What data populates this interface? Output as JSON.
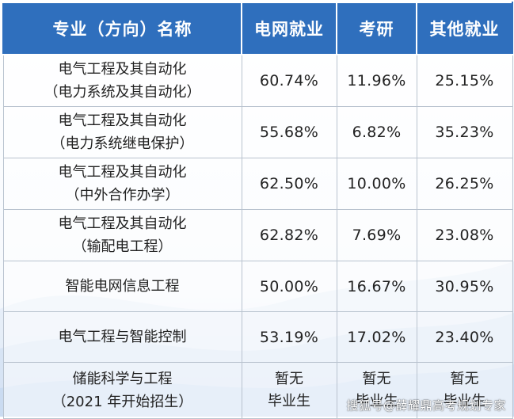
{
  "header": {
    "col_name": "专业（方向）名称",
    "col_grid": "电网就业",
    "col_grad": "考研",
    "col_other": "其他就业"
  },
  "rows": [
    {
      "name_line1": "电气工程及其自动化",
      "name_line2": "（电力系统及其自动化）",
      "grid": "60.74%",
      "grad": "11.96%",
      "other": "25.15%"
    },
    {
      "name_line1": "电气工程及其自动化",
      "name_line2": "（电力系统继电保护）",
      "grid": "55.68%",
      "grad": "6.82%",
      "other": "35.23%"
    },
    {
      "name_line1": "电气工程及其自动化",
      "name_line2": "（中外合作办学）",
      "grid": "62.50%",
      "grad": "10.00%",
      "other": "26.25%"
    },
    {
      "name_line1": "电气工程及其自动化",
      "name_line2": "（输配电工程）",
      "grid": "62.82%",
      "grad": "7.69%",
      "other": "23.08%"
    },
    {
      "name_line1": "智能电网信息工程",
      "grid": "50.00%",
      "grad": "16.67%",
      "other": "30.95%"
    },
    {
      "name_line1": "电气工程与智能控制",
      "grid": "53.19%",
      "grad": "17.02%",
      "other": "23.40%"
    },
    {
      "name_line1": "储能科学与工程",
      "name_line2": "（2021 年开始招生）",
      "grid_line1": "暂无",
      "grid_line2": "毕业生",
      "grad_line1": "暂无",
      "grad_line2": "毕业生",
      "other_line1": "暂无",
      "other_line2": "毕业生"
    }
  ],
  "watermark": "搜狐号@薛耀鼎高考规划专家",
  "colors": {
    "header_bg": "#2f6fbd",
    "header_text": "#ffffff",
    "border": "#b9c3cf"
  }
}
